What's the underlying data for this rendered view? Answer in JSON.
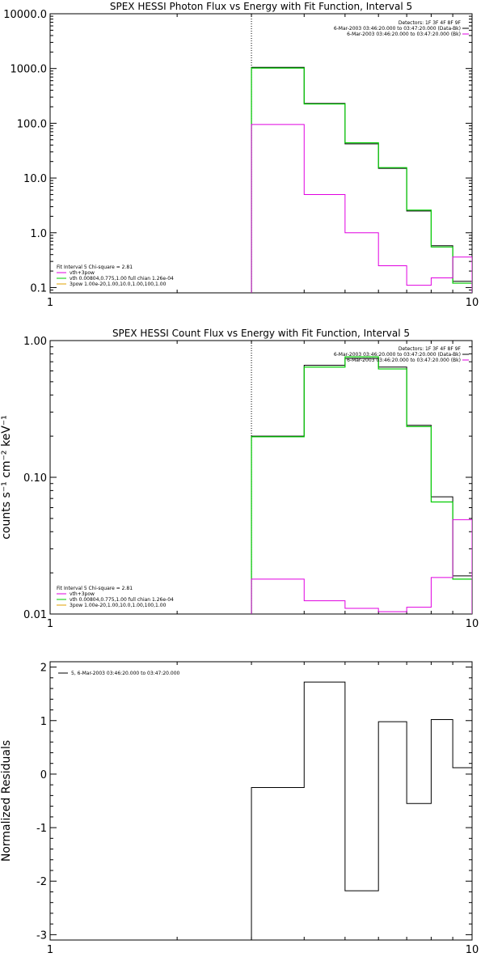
{
  "chart_data": [
    {
      "type": "line",
      "title": "SPEX HESSI Photon Flux vs Energy with Fit Function, Interval 5",
      "xscale": "log",
      "yscale": "log",
      "xlim": [
        1,
        10
      ],
      "ylim": [
        0.08,
        10000
      ],
      "x_ticks": [
        {
          "v": 1,
          "label": "1"
        },
        {
          "v": 10,
          "label": "10"
        }
      ],
      "y_ticks": [
        {
          "v": 0.1,
          "label": "0.1"
        },
        {
          "v": 1,
          "label": "1.0"
        },
        {
          "v": 10,
          "label": "10.0"
        },
        {
          "v": 100,
          "label": "100.0"
        },
        {
          "v": 1000,
          "label": "1000.0"
        },
        {
          "v": 10000,
          "label": "10000.0"
        }
      ],
      "vline": 3,
      "edges": [
        3,
        4,
        5,
        6,
        7,
        8,
        9,
        10
      ],
      "series": [
        {
          "name": "6-Mar-2003 03:46:20.000 to 03:47:20.000 (Data-Bk)",
          "color": "#000000",
          "values": [
            1050,
            230,
            42,
            15,
            2.5,
            0.58,
            0.13
          ]
        },
        {
          "name": "fit",
          "color": "#00cc00",
          "values": [
            1020,
            225,
            44,
            15.5,
            2.6,
            0.55,
            0.12
          ]
        },
        {
          "name": "6-Mar-2003 03:46:20.000 to 03:47:20.000 (Bk)",
          "color": "#e000e0",
          "values": [
            95,
            5,
            1.0,
            0.25,
            0.11,
            0.15,
            0.36
          ]
        }
      ],
      "legend_top": {
        "detectors": "Detectors: 1F 3F 4F 8F 9F",
        "entries": [
          {
            "text": "6-Mar-2003 03:46:20.000 to 03:47:20.000 (Data-Bk)",
            "color": "#000000"
          },
          {
            "text": "6-Mar-2003 03:46:20.000 to 03:47:20.000 (Bk)",
            "color": "#e000e0"
          }
        ]
      },
      "legend_fit": {
        "header": "Fit Interval 5   Chi-square = 2.81",
        "entries": [
          {
            "text": "vth+3pow",
            "color": "#e000e0"
          },
          {
            "text": "vth 0.00804,0.775,1.00   full chian 1.26e-04",
            "color": "#00cc00"
          },
          {
            "text": "3pow 1.00e-20,1.00,10.0,1.00,100,1.00",
            "color": "#e0a000"
          }
        ]
      }
    },
    {
      "type": "line",
      "title": "SPEX HESSI Count Flux vs Energy with Fit Function, Interval 5",
      "ylabel": "counts s⁻¹ cm⁻² keV⁻¹",
      "xscale": "log",
      "yscale": "log",
      "xlim": [
        1,
        10
      ],
      "ylim": [
        0.01,
        1
      ],
      "x_ticks": [
        {
          "v": 1,
          "label": "1"
        },
        {
          "v": 10,
          "label": "10"
        }
      ],
      "y_ticks": [
        {
          "v": 0.01,
          "label": "0.01"
        },
        {
          "v": 0.1,
          "label": "0.10"
        },
        {
          "v": 1,
          "label": "1.00"
        }
      ],
      "vline": 3,
      "edges": [
        3,
        4,
        5,
        6,
        7,
        8,
        9,
        10
      ],
      "series": [
        {
          "name": "6-Mar-2003 03:46:20.000 to 03:47:20.000 (Data-Bk)",
          "color": "#000000",
          "values": [
            0.2,
            0.66,
            0.74,
            0.64,
            0.24,
            0.072,
            0.019
          ]
        },
        {
          "name": "fit",
          "color": "#00cc00",
          "values": [
            0.198,
            0.64,
            0.76,
            0.62,
            0.235,
            0.066,
            0.018
          ]
        },
        {
          "name": "6-Mar-2003 03:46:20.000 to 03:47:20.000 (Bk)",
          "color": "#e000e0",
          "values": [
            0.018,
            0.0125,
            0.011,
            0.0104,
            0.0112,
            0.0185,
            0.049
          ]
        }
      ],
      "legend_top": {
        "detectors": "Detectors: 1F 3F 4F 8F 9F",
        "entries": [
          {
            "text": "6-Mar-2003 03:46:20.000 to 03:47:20.000 (Data-Bk)",
            "color": "#000000"
          },
          {
            "text": "6-Mar-2003 03:46:20.000 to 03:47:20.000 (Bk)",
            "color": "#e000e0"
          }
        ]
      },
      "legend_fit": {
        "header": "Fit Interval 5   Chi-square = 2.81",
        "entries": [
          {
            "text": "vth+3pow",
            "color": "#e000e0"
          },
          {
            "text": "vth 0.00804,0.775,1.00   full chian 1.26e-04",
            "color": "#00cc00"
          },
          {
            "text": "3pow 1.00e-20,1.00,10.0,1.00,100,1.00",
            "color": "#e0a000"
          }
        ]
      }
    },
    {
      "type": "line",
      "title": "",
      "ylabel": "Normalized Residuals",
      "xscale": "log",
      "yscale": "linear",
      "xlim": [
        1,
        10
      ],
      "ylim": [
        -3.1,
        2.1
      ],
      "x_ticks": [
        {
          "v": 1,
          "label": "1"
        },
        {
          "v": 10,
          "label": "10"
        }
      ],
      "y_ticks": [
        {
          "v": -3,
          "label": "-3"
        },
        {
          "v": -2,
          "label": "-2"
        },
        {
          "v": -1,
          "label": "-1"
        },
        {
          "v": 0,
          "label": "0"
        },
        {
          "v": 1,
          "label": "1"
        },
        {
          "v": 2,
          "label": "2"
        }
      ],
      "edges": [
        3,
        4,
        5,
        6,
        7,
        8,
        9,
        10
      ],
      "series": [
        {
          "name": "5,  6-Mar-2003 03:46:20.000 to 03:47:20.000",
          "color": "#000000",
          "values": [
            -0.25,
            1.72,
            -2.18,
            0.98,
            -0.55,
            1.02,
            0.12
          ]
        }
      ],
      "legend_top": {
        "entries": [
          {
            "text": "5,  6-Mar-2003 03:46:20.000 to 03:47:20.000",
            "color": "#000000"
          }
        ]
      }
    }
  ]
}
